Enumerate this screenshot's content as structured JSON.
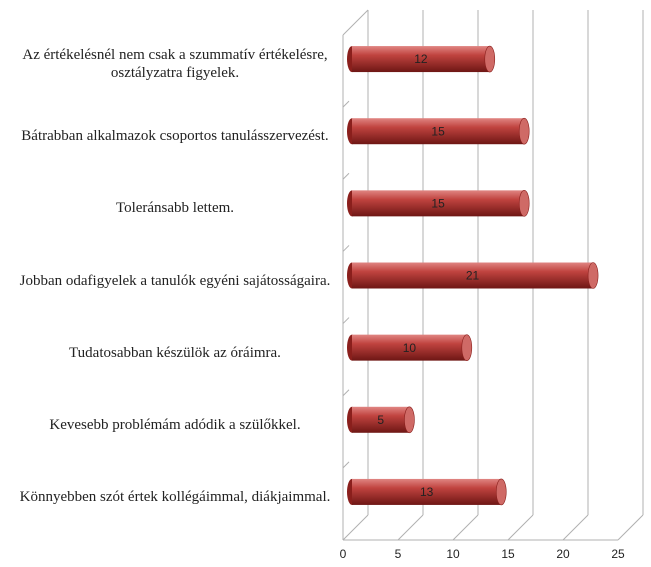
{
  "chart_data": {
    "type": "bar",
    "orientation": "horizontal",
    "categories": [
      "Az értékelésnél nem csak a szummatív értékelésre, osztályzatra figyelek.",
      "Bátrabban alkalmazok csoportos tanulásszervezést.",
      "Toleránsabb lettem.",
      "Jobban odafigyelek a tanulók egyéni sajátosságaira.",
      "Tudatosabban készülök az óráimra.",
      "Kevesebb problémám adódik a szülőkkel.",
      "Könnyebben szót értek kollégáimmal, diákjaimmal."
    ],
    "values": [
      12,
      15,
      15,
      21,
      10,
      5,
      13
    ],
    "color": "#b83a36",
    "xlim": [
      0,
      25
    ],
    "xticks": [
      0,
      5,
      10,
      15,
      20,
      25
    ],
    "grid": true
  }
}
